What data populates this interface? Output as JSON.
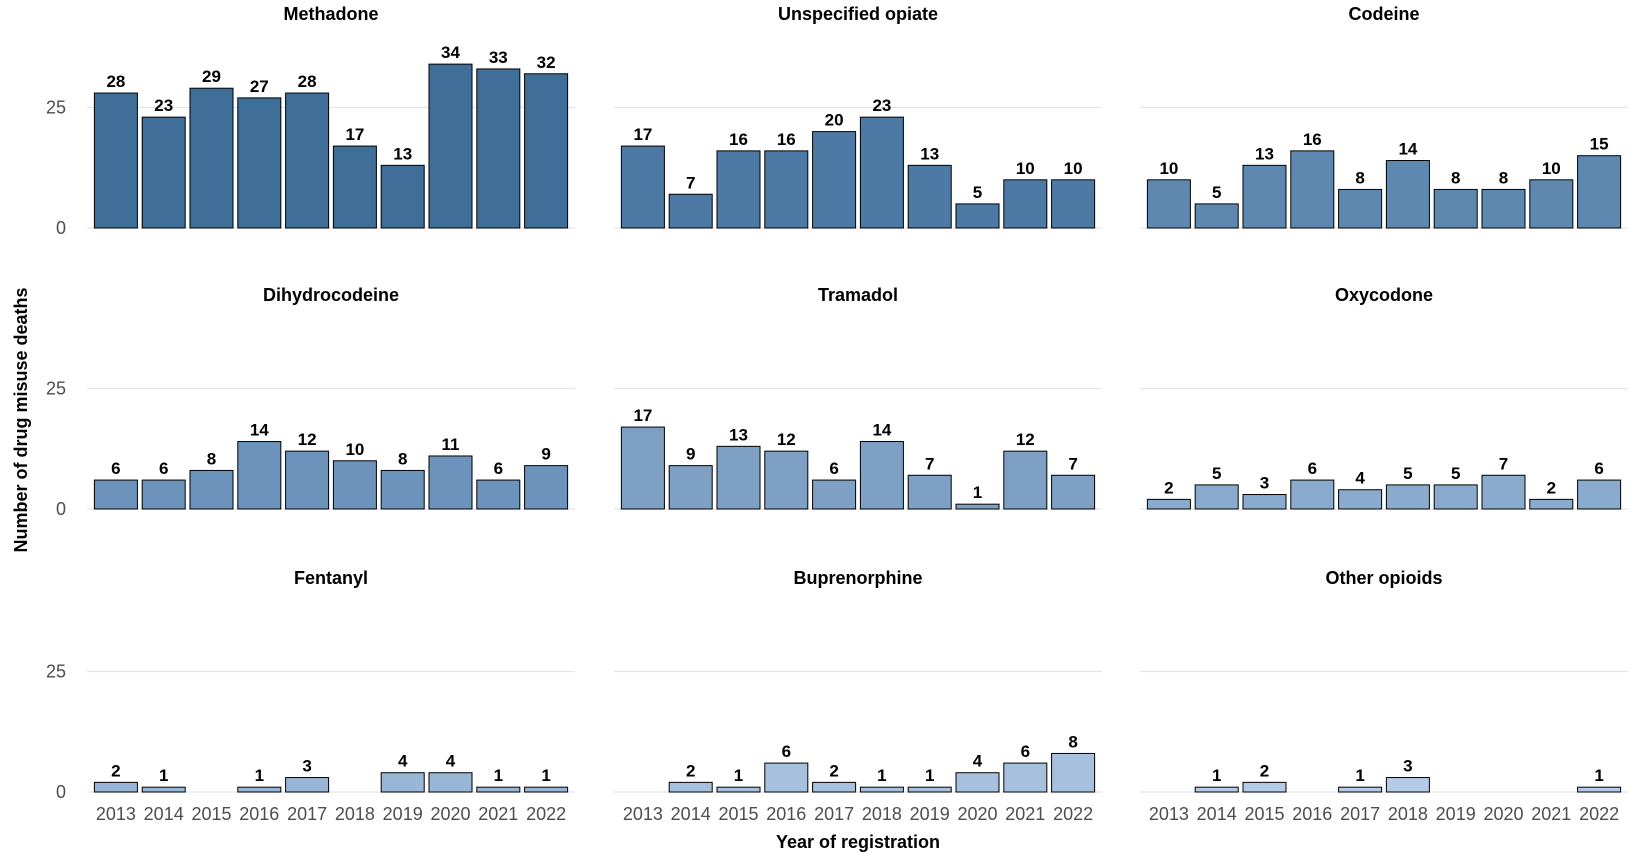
{
  "chart_data": {
    "type": "bar",
    "layout": "facet-grid",
    "xlabel": "Year of registration",
    "ylabel": "Number of drug misuse deaths",
    "categories": [
      "2013",
      "2014",
      "2015",
      "2016",
      "2017",
      "2018",
      "2019",
      "2020",
      "2021",
      "2022"
    ],
    "y_ticks": [
      0,
      25
    ],
    "ylim": [
      0,
      36
    ],
    "grid": "horizontal major",
    "series": [
      {
        "name": "Methadone",
        "color": "#3f6f98",
        "values": [
          28,
          23,
          29,
          27,
          28,
          17,
          13,
          34,
          33,
          32
        ]
      },
      {
        "name": "Unspecified opiate",
        "color": "#4c7aa5",
        "values": [
          17,
          7,
          16,
          16,
          20,
          23,
          13,
          5,
          10,
          10
        ]
      },
      {
        "name": "Codeine",
        "color": "#5f88b1",
        "values": [
          10,
          5,
          13,
          16,
          8,
          14,
          8,
          8,
          10,
          15
        ]
      },
      {
        "name": "Dihydrocodeine",
        "color": "#6b93bb",
        "values": [
          6,
          6,
          8,
          14,
          12,
          10,
          8,
          11,
          6,
          9
        ]
      },
      {
        "name": "Tramadol",
        "color": "#7da0c4",
        "values": [
          17,
          9,
          13,
          12,
          6,
          14,
          7,
          1,
          12,
          7
        ]
      },
      {
        "name": "Oxycodone",
        "color": "#8aabcd",
        "values": [
          2,
          5,
          3,
          6,
          4,
          5,
          5,
          7,
          2,
          6
        ]
      },
      {
        "name": "Fentanyl",
        "color": "#9ab6d6",
        "values": [
          2,
          1,
          null,
          1,
          3,
          null,
          4,
          4,
          1,
          1
        ]
      },
      {
        "name": "Buprenorphine",
        "color": "#a7c0de",
        "values": [
          null,
          2,
          1,
          6,
          2,
          1,
          1,
          4,
          6,
          8
        ]
      },
      {
        "name": "Other opioids",
        "color": "#b4cae6",
        "values": [
          null,
          1,
          2,
          null,
          1,
          3,
          null,
          null,
          null,
          1
        ]
      }
    ]
  }
}
